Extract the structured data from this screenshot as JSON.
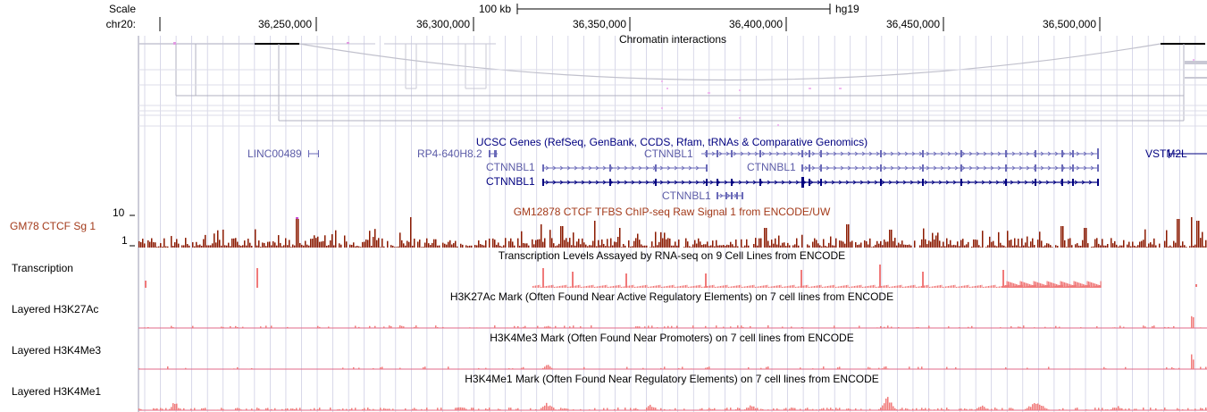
{
  "ruler": {
    "scale_label": "Scale",
    "chrom_label": "chr20:",
    "scale_bar_text": "100 kb",
    "assembly": "hg19",
    "positions": [
      "36,250,000",
      "36,300,000",
      "36,350,000",
      "36,400,000",
      "36,450,000",
      "36,500,000"
    ]
  },
  "tracks": {
    "interactions": {
      "title": "Chromatin interactions"
    },
    "genes": {
      "title": "UCSC Genes (RefSeq, GenBank, CCDS, Rfam, tRNAs & Comparative Genomics)",
      "labels": [
        "LINC00489",
        "RP4-640H8.2",
        "CTNNBL1",
        "CTNNBL1",
        "CTNNBL1",
        "CTNNBL1",
        "CTNNBL1",
        "VSTM2L"
      ]
    },
    "ctcf": {
      "side_label": "GM78 CTCF Sg 1",
      "title": "GM12878 CTCF TFBS ChIP-seq Raw Signal 1 from ENCODE/UW",
      "y_max": "10",
      "y_min": "1"
    },
    "transcription": {
      "side_label": "Transcription",
      "title": "Transcription Levels Assayed by RNA-seq on 9 Cell Lines from ENCODE"
    },
    "h3k27ac": {
      "side_label": "Layered H3K27Ac",
      "title": "H3K27Ac Mark (Often Found Near Active Regulatory Elements) on 7 cell lines from ENCODE"
    },
    "h3k4me3": {
      "side_label": "Layered H3K4Me3",
      "title": "H3K4Me3 Mark (Often Found Near Promoters) on 7 cell lines from ENCODE"
    },
    "h3k4me1": {
      "side_label": "Layered H3K4Me1",
      "title": "H3K4Me1 Mark (Often Found Near Regulatory Elements) on 7 cell lines from ENCODE"
    }
  },
  "colors": {
    "gene": "#000080",
    "gene_light": "#5c5ca8",
    "ctcf": "#8b1a00",
    "ctcf_label": "#a33a1a",
    "layered": "#f07a7a",
    "grid": "#c8c8e0"
  }
}
